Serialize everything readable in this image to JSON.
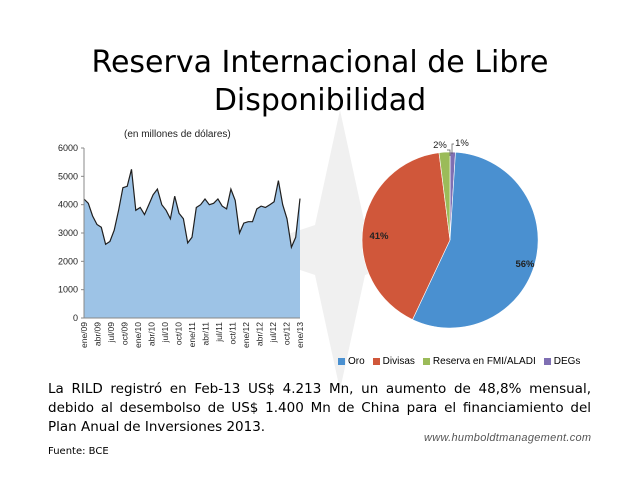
{
  "title": "Reserva Internacional de Libre Disponibilidad",
  "body_text": "La RILD registró en Feb-13 US$ 4.213 Mn, un aumento de 48,8% mensual, debido al desembolso de US$ 1.400 Mn de China para el financiamiento del Plan Anual de Inversiones 2013.",
  "website": "www.humboldtmanagement.com",
  "source": "Fuente: BCE",
  "chart_data": [
    {
      "type": "area",
      "subtitle": "(en millones de dólares)",
      "ylim": [
        0,
        6000
      ],
      "yticks": [
        0,
        1000,
        2000,
        3000,
        4000,
        5000,
        6000
      ],
      "x_tick_labels": [
        "ene/09",
        "abr/09",
        "jul/09",
        "oct/09",
        "ene/10",
        "abr/10",
        "jul/10",
        "oct/10",
        "ene/11",
        "abr/11",
        "jul/11",
        "oct/11",
        "ene/12",
        "abr/12",
        "jul/12",
        "oct/12",
        "ene/13"
      ],
      "values": [
        4200,
        4050,
        3600,
        3300,
        3200,
        2600,
        2700,
        3100,
        3800,
        4600,
        4650,
        5250,
        3800,
        3900,
        3650,
        4000,
        4350,
        4550,
        4000,
        3800,
        3500,
        4300,
        3700,
        3500,
        2650,
        2850,
        3900,
        4000,
        4200,
        4000,
        4050,
        4200,
        3950,
        3850,
        4550,
        4150,
        3000,
        3350,
        3400,
        3400,
        3850,
        3950,
        3900,
        4000,
        4100,
        4850,
        4000,
        3500,
        2500,
        2850,
        4213
      ],
      "fill_color": "#9dc3e6",
      "grid": false
    },
    {
      "type": "pie",
      "slices": [
        {
          "label": "Oro",
          "value": 56,
          "text": "56%",
          "color": "#4a90d0"
        },
        {
          "label": "Divisas",
          "value": 41,
          "text": "41%",
          "color": "#d0573a"
        },
        {
          "label": "Reserva en FMI/ALADI",
          "value": 2,
          "text": "2%",
          "color": "#9bbb59"
        },
        {
          "label": "DEGs",
          "value": 1,
          "text": "1%",
          "color": "#7f6fb3"
        }
      ],
      "legend": "bottom"
    }
  ]
}
